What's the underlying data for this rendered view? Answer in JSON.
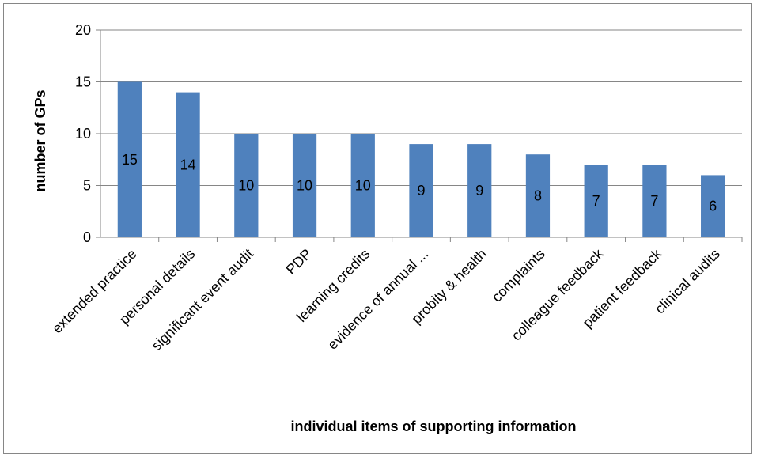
{
  "chart_data": {
    "type": "bar",
    "title": "",
    "xlabel": "individual items of supporting information",
    "ylabel": "number of GPs",
    "ylim": [
      0,
      20
    ],
    "yticks": [
      0,
      5,
      10,
      15,
      20
    ],
    "categories": [
      "extended practice",
      "personal details",
      "significant event audit",
      "PDP",
      "learning credits",
      "evidence of annual ...",
      "probity & health",
      "complaints",
      "colleague feedback",
      "patient feedback",
      "clinical audits"
    ],
    "values": [
      15,
      14,
      10,
      10,
      10,
      9,
      9,
      8,
      7,
      7,
      6
    ],
    "data_labels": true,
    "grid": true,
    "legend": "none",
    "bar_color": "#4F81BD",
    "grid_color": "#868686"
  }
}
